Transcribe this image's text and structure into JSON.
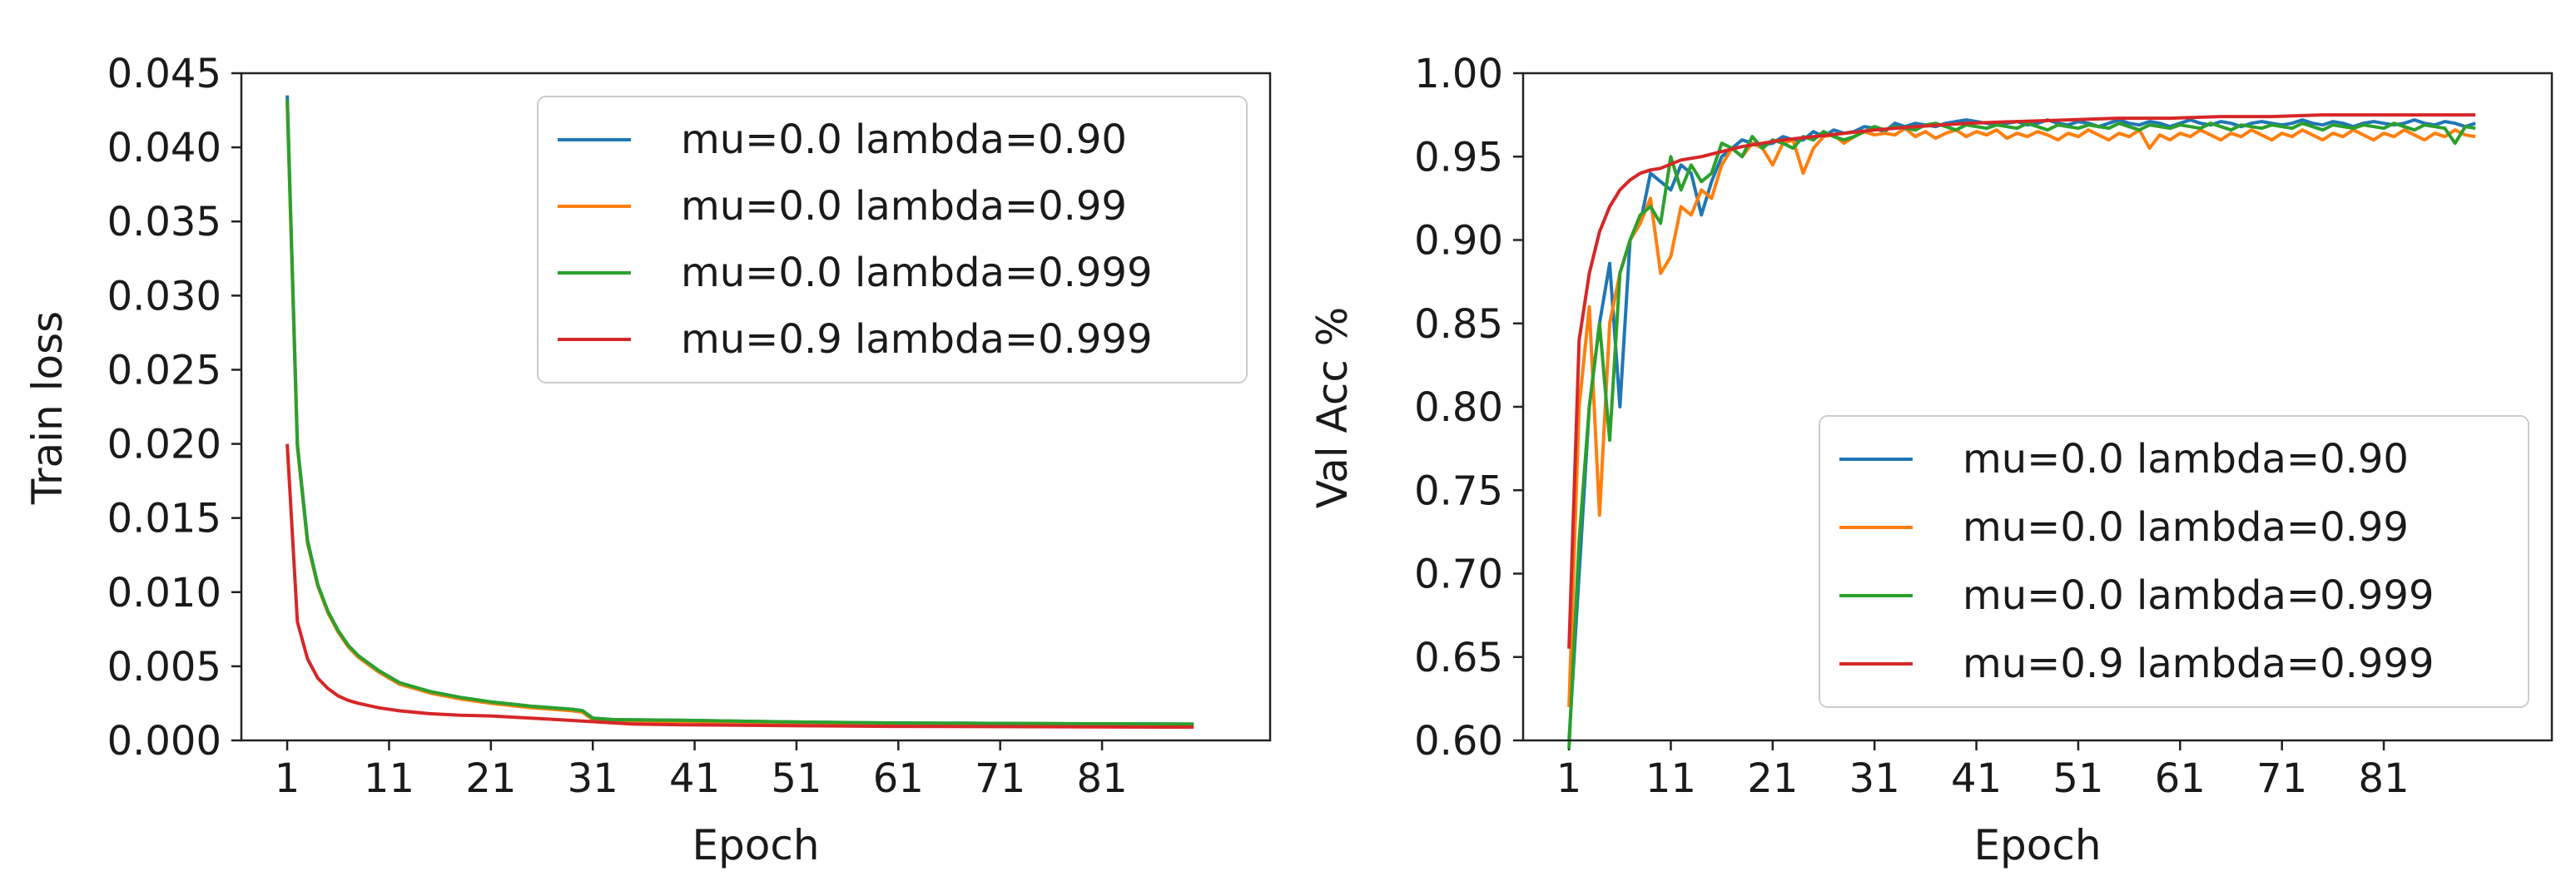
{
  "colors": {
    "blue": "#1f77b4",
    "orange": "#ff7f0e",
    "green": "#2ca02c",
    "red": "#d62728"
  },
  "chart_data": [
    {
      "type": "line",
      "xlabel": "Epoch",
      "ylabel": "Train loss",
      "xlim": [
        -3.5,
        97.5
      ],
      "ylim": [
        0,
        0.045
      ],
      "xticks": [
        1,
        11,
        21,
        31,
        41,
        51,
        61,
        71,
        81
      ],
      "xtick_labels": [
        "1",
        "11",
        "21",
        "31",
        "41",
        "51",
        "61",
        "71",
        "81"
      ],
      "yticks": [
        0.0,
        0.005,
        0.01,
        0.015,
        0.02,
        0.025,
        0.03,
        0.035,
        0.04,
        0.045
      ],
      "ytick_labels": [
        "0.000",
        "0.005",
        "0.010",
        "0.015",
        "0.020",
        "0.025",
        "0.030",
        "0.035",
        "0.040",
        "0.045"
      ],
      "legend_position": "top-right",
      "grid": false,
      "series": [
        {
          "name": "mu=0.0 lambda=0.90",
          "color": "blue",
          "x": [
            1,
            2,
            3,
            4,
            5,
            6,
            7,
            8,
            10,
            12,
            15,
            18,
            21,
            25,
            29,
            30,
            31,
            33,
            40,
            50,
            60,
            70,
            80,
            90
          ],
          "y": [
            0.0435,
            0.02,
            0.0135,
            0.0105,
            0.0087,
            0.0074,
            0.0064,
            0.0057,
            0.0047,
            0.0039,
            0.0033,
            0.0029,
            0.0026,
            0.0023,
            0.0021,
            0.002,
            0.0015,
            0.0014,
            0.00135,
            0.00125,
            0.00118,
            0.00115,
            0.00112,
            0.0011
          ]
        },
        {
          "name": "mu=0.0 lambda=0.99",
          "color": "orange",
          "x": [
            1,
            2,
            3,
            4,
            5,
            6,
            7,
            8,
            10,
            12,
            15,
            18,
            21,
            25,
            29,
            30,
            31,
            33,
            40,
            50,
            60,
            70,
            80,
            90
          ],
          "y": [
            0.043,
            0.0198,
            0.0133,
            0.0104,
            0.0086,
            0.0073,
            0.0063,
            0.0056,
            0.0046,
            0.0038,
            0.0032,
            0.0028,
            0.0025,
            0.0022,
            0.002,
            0.0019,
            0.0014,
            0.00132,
            0.00128,
            0.0012,
            0.00113,
            0.0011,
            0.00107,
            0.00105
          ]
        },
        {
          "name": "mu=0.0 lambda=0.999",
          "color": "green",
          "x": [
            1,
            2,
            3,
            4,
            5,
            6,
            7,
            8,
            10,
            12,
            15,
            18,
            21,
            25,
            29,
            30,
            31,
            33,
            40,
            50,
            60,
            70,
            80,
            90
          ],
          "y": [
            0.0432,
            0.0199,
            0.0134,
            0.0105,
            0.0087,
            0.0074,
            0.0064,
            0.0057,
            0.0047,
            0.0039,
            0.0033,
            0.0029,
            0.0026,
            0.0023,
            0.0021,
            0.002,
            0.0015,
            0.0014,
            0.00135,
            0.00125,
            0.00118,
            0.00115,
            0.00112,
            0.0011
          ]
        },
        {
          "name": "mu=0.9 lambda=0.999",
          "color": "red",
          "x": [
            1,
            2,
            3,
            4,
            5,
            6,
            7,
            8,
            10,
            12,
            15,
            18,
            21,
            25,
            30,
            35,
            40,
            50,
            60,
            70,
            80,
            90
          ],
          "y": [
            0.02,
            0.008,
            0.0055,
            0.0042,
            0.0035,
            0.003,
            0.0027,
            0.0025,
            0.0022,
            0.002,
            0.0018,
            0.0017,
            0.00165,
            0.0015,
            0.0013,
            0.0011,
            0.00105,
            0.001,
            0.00095,
            0.00093,
            0.00091,
            0.0009
          ]
        }
      ]
    },
    {
      "type": "line",
      "xlabel": "Epoch",
      "ylabel": "Val Acc %",
      "xlim": [
        -3.5,
        97.5
      ],
      "ylim": [
        0.6,
        1.0
      ],
      "xticks": [
        1,
        11,
        21,
        31,
        41,
        51,
        61,
        71,
        81
      ],
      "xtick_labels": [
        "1",
        "11",
        "21",
        "31",
        "41",
        "51",
        "61",
        "71",
        "81"
      ],
      "yticks": [
        0.6,
        0.65,
        0.7,
        0.75,
        0.8,
        0.85,
        0.9,
        0.95,
        1.0
      ],
      "ytick_labels": [
        "0.60",
        "0.65",
        "0.70",
        "0.75",
        "0.80",
        "0.85",
        "0.90",
        "0.95",
        "1.00"
      ],
      "legend_position": "lower-right",
      "grid": false,
      "series": [
        {
          "name": "mu=0.0 lambda=0.90",
          "color": "blue",
          "x": [
            1,
            2,
            3,
            4,
            5,
            6,
            7,
            8,
            9,
            10,
            11,
            12,
            13,
            14,
            15,
            16,
            17,
            18,
            19,
            20,
            21,
            22,
            23,
            24,
            25,
            26,
            27,
            28,
            29,
            30,
            31,
            32,
            33,
            34,
            35,
            36,
            37,
            38,
            39,
            40,
            41,
            42,
            43,
            44,
            45,
            46,
            47,
            48,
            49,
            50,
            51,
            52,
            53,
            54,
            55,
            56,
            57,
            58,
            59,
            60,
            61,
            62,
            63,
            64,
            65,
            66,
            67,
            68,
            69,
            70,
            71,
            72,
            73,
            74,
            75,
            76,
            77,
            78,
            79,
            80,
            81,
            82,
            83,
            84,
            85,
            86,
            87,
            88,
            89,
            90
          ],
          "y": [
            0.6,
            0.7,
            0.8,
            0.85,
            0.886,
            0.8,
            0.9,
            0.91,
            0.94,
            0.935,
            0.93,
            0.945,
            0.94,
            0.915,
            0.935,
            0.95,
            0.955,
            0.96,
            0.958,
            0.957,
            0.958,
            0.962,
            0.96,
            0.96,
            0.965,
            0.962,
            0.966,
            0.964,
            0.965,
            0.968,
            0.967,
            0.965,
            0.97,
            0.968,
            0.97,
            0.969,
            0.968,
            0.97,
            0.971,
            0.972,
            0.971,
            0.97,
            0.969,
            0.97,
            0.971,
            0.969,
            0.97,
            0.972,
            0.97,
            0.969,
            0.971,
            0.97,
            0.968,
            0.97,
            0.972,
            0.97,
            0.969,
            0.971,
            0.97,
            0.968,
            0.97,
            0.972,
            0.97,
            0.969,
            0.971,
            0.97,
            0.968,
            0.97,
            0.971,
            0.97,
            0.969,
            0.97,
            0.972,
            0.97,
            0.969,
            0.971,
            0.97,
            0.968,
            0.97,
            0.971,
            0.97,
            0.969,
            0.97,
            0.972,
            0.97,
            0.969,
            0.971,
            0.97,
            0.968,
            0.97
          ]
        },
        {
          "name": "mu=0.0 lambda=0.99",
          "color": "orange",
          "x": [
            1,
            2,
            3,
            4,
            5,
            6,
            7,
            8,
            9,
            10,
            11,
            12,
            13,
            14,
            15,
            16,
            17,
            18,
            19,
            20,
            21,
            22,
            23,
            24,
            25,
            26,
            27,
            28,
            29,
            30,
            31,
            32,
            33,
            34,
            35,
            36,
            37,
            38,
            39,
            40,
            41,
            42,
            43,
            44,
            45,
            46,
            47,
            48,
            49,
            50,
            51,
            52,
            53,
            54,
            55,
            56,
            57,
            58,
            59,
            60,
            61,
            62,
            63,
            64,
            65,
            66,
            67,
            68,
            69,
            70,
            71,
            72,
            73,
            74,
            75,
            76,
            77,
            78,
            79,
            80,
            81,
            82,
            83,
            84,
            85,
            86,
            87,
            88,
            89,
            90
          ],
          "y": [
            0.62,
            0.8,
            0.86,
            0.735,
            0.85,
            0.88,
            0.9,
            0.91,
            0.925,
            0.88,
            0.89,
            0.92,
            0.915,
            0.93,
            0.925,
            0.945,
            0.955,
            0.95,
            0.958,
            0.955,
            0.945,
            0.958,
            0.96,
            0.94,
            0.955,
            0.962,
            0.963,
            0.958,
            0.962,
            0.965,
            0.963,
            0.964,
            0.963,
            0.967,
            0.962,
            0.965,
            0.961,
            0.964,
            0.966,
            0.962,
            0.965,
            0.963,
            0.966,
            0.961,
            0.964,
            0.962,
            0.965,
            0.963,
            0.96,
            0.964,
            0.962,
            0.966,
            0.963,
            0.96,
            0.964,
            0.962,
            0.966,
            0.955,
            0.963,
            0.96,
            0.964,
            0.962,
            0.966,
            0.963,
            0.96,
            0.964,
            0.962,
            0.966,
            0.963,
            0.96,
            0.964,
            0.962,
            0.966,
            0.963,
            0.96,
            0.964,
            0.962,
            0.966,
            0.963,
            0.96,
            0.964,
            0.962,
            0.966,
            0.963,
            0.96,
            0.964,
            0.962,
            0.966,
            0.963,
            0.962
          ]
        },
        {
          "name": "mu=0.0 lambda=0.999",
          "color": "green",
          "x": [
            1,
            2,
            3,
            4,
            5,
            6,
            7,
            8,
            9,
            10,
            11,
            12,
            13,
            14,
            15,
            16,
            17,
            18,
            19,
            20,
            21,
            22,
            23,
            24,
            25,
            26,
            27,
            28,
            29,
            30,
            31,
            32,
            33,
            34,
            35,
            36,
            37,
            38,
            39,
            40,
            41,
            42,
            43,
            44,
            45,
            46,
            47,
            48,
            49,
            50,
            51,
            52,
            53,
            54,
            55,
            56,
            57,
            58,
            59,
            60,
            61,
            62,
            63,
            64,
            65,
            66,
            67,
            68,
            69,
            70,
            71,
            72,
            73,
            74,
            75,
            76,
            77,
            78,
            79,
            80,
            81,
            82,
            83,
            84,
            85,
            86,
            87,
            88,
            89,
            90
          ],
          "y": [
            0.595,
            0.72,
            0.8,
            0.85,
            0.78,
            0.88,
            0.9,
            0.915,
            0.92,
            0.91,
            0.95,
            0.93,
            0.945,
            0.935,
            0.94,
            0.958,
            0.955,
            0.95,
            0.962,
            0.955,
            0.96,
            0.958,
            0.955,
            0.962,
            0.96,
            0.965,
            0.962,
            0.96,
            0.962,
            0.965,
            0.968,
            0.966,
            0.968,
            0.967,
            0.966,
            0.969,
            0.97,
            0.968,
            0.966,
            0.969,
            0.968,
            0.967,
            0.969,
            0.968,
            0.967,
            0.97,
            0.968,
            0.966,
            0.969,
            0.968,
            0.967,
            0.969,
            0.968,
            0.967,
            0.97,
            0.968,
            0.966,
            0.969,
            0.968,
            0.967,
            0.969,
            0.968,
            0.967,
            0.97,
            0.968,
            0.966,
            0.969,
            0.968,
            0.967,
            0.969,
            0.968,
            0.967,
            0.97,
            0.968,
            0.966,
            0.969,
            0.968,
            0.967,
            0.969,
            0.968,
            0.967,
            0.97,
            0.968,
            0.966,
            0.969,
            0.968,
            0.967,
            0.958,
            0.968,
            0.967
          ]
        },
        {
          "name": "mu=0.9 lambda=0.999",
          "color": "red",
          "x": [
            1,
            2,
            3,
            4,
            5,
            6,
            7,
            8,
            9,
            10,
            12,
            14,
            16,
            18,
            20,
            22,
            25,
            28,
            31,
            35,
            40,
            45,
            50,
            55,
            60,
            65,
            70,
            75,
            80,
            85,
            90
          ],
          "y": [
            0.655,
            0.84,
            0.88,
            0.905,
            0.92,
            0.93,
            0.936,
            0.94,
            0.942,
            0.943,
            0.948,
            0.95,
            0.953,
            0.956,
            0.958,
            0.96,
            0.962,
            0.964,
            0.966,
            0.968,
            0.97,
            0.971,
            0.972,
            0.973,
            0.973,
            0.974,
            0.974,
            0.975,
            0.975,
            0.975,
            0.975
          ]
        }
      ]
    }
  ]
}
